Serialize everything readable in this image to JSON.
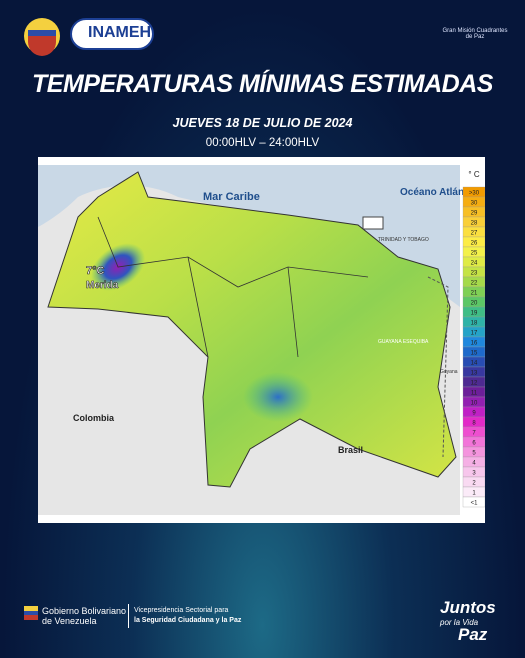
{
  "header": {
    "brand": "INAMEH",
    "mission": "Gran Misión Cuadrantes de Paz",
    "title": "TEMPERATURAS MÍNIMAS ESTIMADAS",
    "date": "JUEVES 18 DE JULIO DE 2024",
    "period": "00:00HLV – 24:00HLV"
  },
  "map": {
    "labels": {
      "sea": "Mar Caribe",
      "ocean": "Océano Atlántico",
      "colombia": "Colombia",
      "brasil": "Brasil",
      "trinidad": "TRINIDAD Y TOBAGO",
      "esequibo": "GUAYANA ESEQUIBA",
      "guyana": "Guyana"
    },
    "callout": {
      "value": "7°C",
      "place": "Merida"
    },
    "legend": {
      "unit": "° C",
      "items": [
        {
          "label": ">30",
          "color": "#f29b00"
        },
        {
          "label": 30,
          "color": "#f5ad12"
        },
        {
          "label": 29,
          "color": "#f7bf25"
        },
        {
          "label": 28,
          "color": "#f9cf38"
        },
        {
          "label": 27,
          "color": "#fbdf40"
        },
        {
          "label": 26,
          "color": "#fcec46"
        },
        {
          "label": 25,
          "color": "#f3f14a"
        },
        {
          "label": 24,
          "color": "#dfeb45"
        },
        {
          "label": 23,
          "color": "#c5e345"
        },
        {
          "label": 22,
          "color": "#a5da4a"
        },
        {
          "label": 21,
          "color": "#7fd055"
        },
        {
          "label": 20,
          "color": "#5cc766"
        },
        {
          "label": 19,
          "color": "#3fbd86"
        },
        {
          "label": 18,
          "color": "#2fb3a8"
        },
        {
          "label": 17,
          "color": "#25a3c8"
        },
        {
          "label": 16,
          "color": "#1f88de"
        },
        {
          "label": 15,
          "color": "#1e6acb"
        },
        {
          "label": 14,
          "color": "#284db3"
        },
        {
          "label": 13,
          "color": "#3838a0"
        },
        {
          "label": 12,
          "color": "#4e2a92"
        },
        {
          "label": 11,
          "color": "#6c1f9a"
        },
        {
          "label": 10,
          "color": "#9220b2"
        },
        {
          "label": 9,
          "color": "#c020c6"
        },
        {
          "label": 8,
          "color": "#e22ac8"
        },
        {
          "label": 7,
          "color": "#ee4fd0"
        },
        {
          "label": 6,
          "color": "#f274d9"
        },
        {
          "label": 5,
          "color": "#f494de"
        },
        {
          "label": 4,
          "color": "#f5b0e5"
        },
        {
          "label": 3,
          "color": "#f7c6ec"
        },
        {
          "label": 2,
          "color": "#f9daf2"
        },
        {
          "label": 1,
          "color": "#fbebf8"
        },
        {
          "label": "<1",
          "color": "#ffffff"
        }
      ]
    }
  },
  "footer": {
    "gov1": "Gobierno Bolivariano",
    "gov2": "de Venezuela",
    "vice1": "Vicepresidencia Sectorial para",
    "vice2": "la Seguridad Ciudadana y la Paz",
    "slogan1": "Juntos",
    "slogan2": "por la Vida",
    "slogan3": "Paz"
  }
}
